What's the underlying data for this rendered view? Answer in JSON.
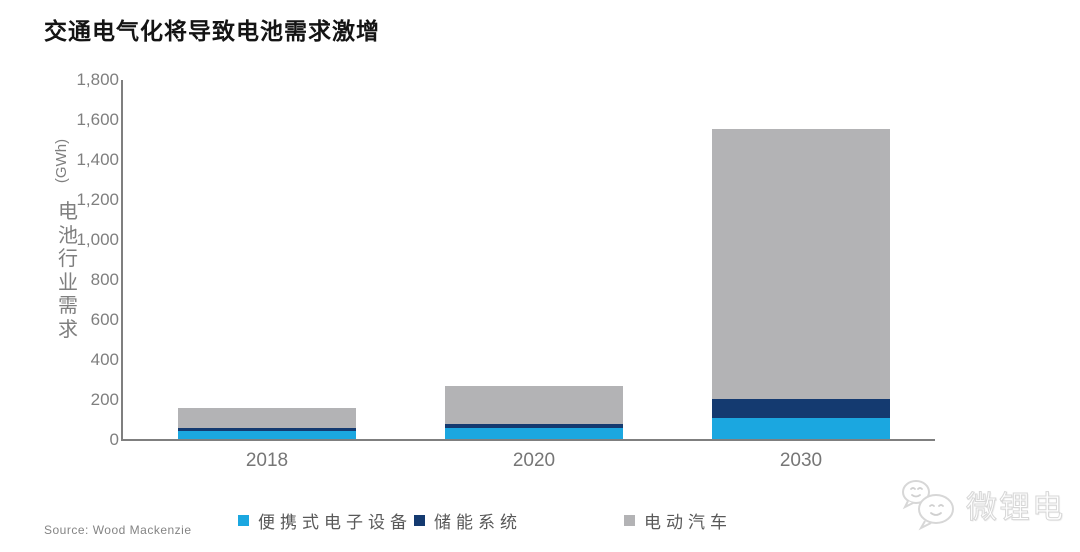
{
  "title": "交通电气化将导致电池需求激增",
  "source": "Source: Wood Mackenzie",
  "watermark": "微锂电",
  "colors": {
    "portable": "#1ba7e0",
    "storage": "#143a70",
    "ev": "#b3b3b5",
    "axis": "#7f7f7f"
  },
  "chart_data": {
    "type": "bar",
    "stacked": true,
    "title": "交通电气化将导致电池需求激增",
    "categories": [
      "2018",
      "2020",
      "2030"
    ],
    "series": [
      {
        "name": "便携式电子设备",
        "color_key": "portable",
        "values": [
          45,
          60,
          110
        ]
      },
      {
        "name": "储能系统",
        "color_key": "storage",
        "values": [
          15,
          20,
          95
        ]
      },
      {
        "name": "电动汽车",
        "color_key": "ev",
        "values": [
          100,
          190,
          1350
        ]
      }
    ],
    "totals": [
      160,
      270,
      1555
    ],
    "ylabel": "电池行业需求",
    "ylabel_unit": "(GWh)",
    "ylim": [
      0,
      1800
    ],
    "ytick_step": 200,
    "yticks": [
      "1,800",
      "1,600",
      "1,400",
      "1,200",
      "1,000",
      "800",
      "600",
      "400",
      "200",
      "0"
    ],
    "grid": false,
    "legend_position": "bottom"
  },
  "legend": [
    {
      "label": "便携式电子设备",
      "color_key": "portable"
    },
    {
      "label": "储能系统",
      "color_key": "storage"
    },
    {
      "label": "电动汽车",
      "color_key": "ev"
    }
  ]
}
